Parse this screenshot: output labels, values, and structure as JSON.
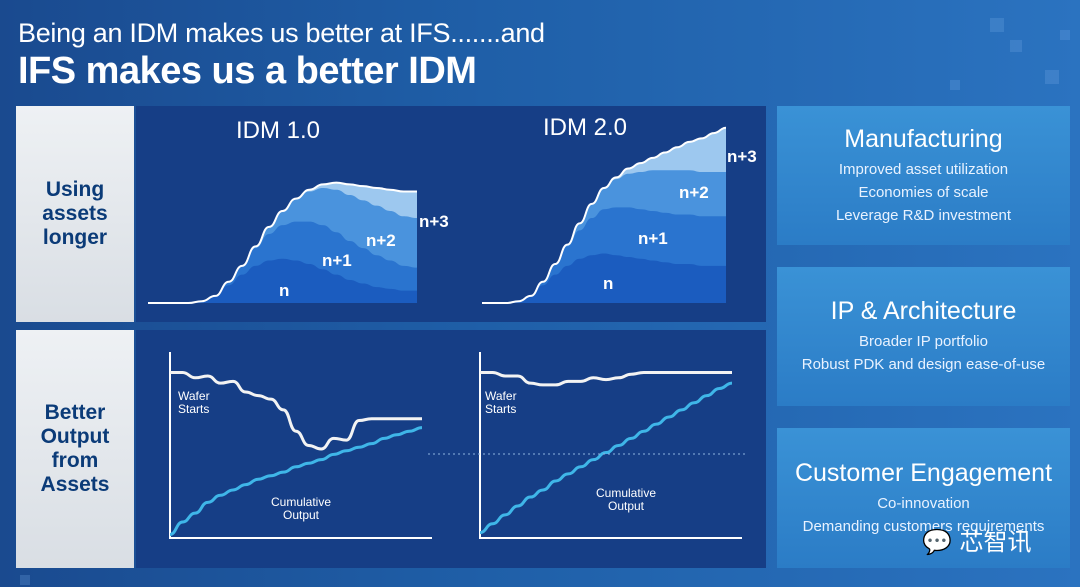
{
  "header": {
    "line1": "Being an IDM makes us better at IFS.......and",
    "line2": "IFS makes us a better IDM"
  },
  "rows": [
    {
      "label": "Using\nassets\nlonger"
    },
    {
      "label": "Better\nOutput\nfrom\nAssets"
    }
  ],
  "cards": [
    {
      "title": "Manufacturing",
      "items": [
        "Improved asset utilization",
        "Economies of scale",
        "Leverage R&D investment"
      ]
    },
    {
      "title": "IP & Architecture",
      "items": [
        "Broader IP portfolio",
        "Robust PDK and design ease-of-use"
      ]
    },
    {
      "title": "Customer Engagement",
      "items": [
        "Co-innovation",
        "Demanding customers requirements"
      ]
    }
  ],
  "watermark": "芯智讯",
  "colors": {
    "layer_n": "#1b5cbf",
    "layer_n1": "#2a74cf",
    "layer_n2": "#4a93dd",
    "layer_n3": "#9dc8ef",
    "cumulative": "#3fb6e8"
  },
  "chart_data": [
    {
      "type": "area",
      "title": "IDM 1.0",
      "stacked": true,
      "x": [
        0,
        1,
        2,
        3,
        4,
        5,
        6,
        7,
        8,
        9,
        10,
        11,
        12,
        13,
        14,
        15,
        16,
        17,
        18,
        19,
        20
      ],
      "ylim": [
        0,
        100
      ],
      "series": [
        {
          "name": "n",
          "values": [
            0,
            0,
            0,
            0,
            1,
            4,
            10,
            16,
            21,
            24,
            25,
            24,
            22,
            19,
            16,
            13,
            11,
            9,
            8,
            7,
            7
          ]
        },
        {
          "name": "n+1",
          "values": [
            0,
            0,
            0,
            0,
            0,
            0,
            2,
            5,
            10,
            15,
            19,
            22,
            24,
            25,
            24,
            22,
            20,
            18,
            16,
            14,
            13
          ]
        },
        {
          "name": "n+2",
          "values": [
            0,
            0,
            0,
            0,
            0,
            0,
            0,
            0,
            1,
            4,
            8,
            13,
            17,
            21,
            24,
            26,
            27,
            28,
            28,
            28,
            28
          ]
        },
        {
          "name": "n+3",
          "values": [
            0,
            0,
            0,
            0,
            0,
            0,
            0,
            0,
            0,
            0,
            0,
            0,
            1,
            2,
            4,
            6,
            8,
            10,
            12,
            14,
            15
          ]
        }
      ]
    },
    {
      "type": "area",
      "title": "IDM 2.0",
      "stacked": true,
      "x": [
        0,
        1,
        2,
        3,
        4,
        5,
        6,
        7,
        8,
        9,
        10,
        11,
        12,
        13,
        14,
        15,
        16,
        17,
        18,
        19,
        20
      ],
      "ylim": [
        0,
        100
      ],
      "series": [
        {
          "name": "n",
          "values": [
            0,
            0,
            0,
            1,
            4,
            10,
            16,
            21,
            25,
            27,
            28,
            27,
            26,
            25,
            24,
            23,
            22,
            22,
            21,
            21,
            21
          ]
        },
        {
          "name": "n+1",
          "values": [
            0,
            0,
            0,
            0,
            0,
            2,
            6,
            11,
            16,
            21,
            25,
            27,
            28,
            28,
            28,
            28,
            28,
            28,
            28,
            28,
            28
          ]
        },
        {
          "name": "n+2",
          "values": [
            0,
            0,
            0,
            0,
            0,
            0,
            0,
            1,
            4,
            8,
            12,
            16,
            19,
            21,
            23,
            24,
            25,
            25,
            25,
            25,
            25
          ]
        },
        {
          "name": "n+3",
          "values": [
            0,
            0,
            0,
            0,
            0,
            0,
            0,
            0,
            0,
            0,
            0,
            1,
            3,
            5,
            7,
            10,
            13,
            16,
            19,
            22,
            25
          ]
        }
      ]
    },
    {
      "type": "line",
      "title": "",
      "x": [
        0,
        1,
        2,
        3,
        4,
        5,
        6,
        7,
        8,
        9,
        10,
        11,
        12,
        13,
        14,
        15,
        16,
        17,
        18,
        19,
        20
      ],
      "ylim": [
        0,
        100
      ],
      "series": [
        {
          "name": "Wafer Starts",
          "values": [
            93,
            93,
            90,
            91,
            87,
            88,
            82,
            80,
            78,
            72,
            60,
            52,
            50,
            56,
            55,
            66,
            67,
            67,
            67,
            67,
            67
          ]
        },
        {
          "name": "Cumulative Output",
          "values": [
            2,
            9,
            14,
            20,
            24,
            27,
            30,
            33,
            35,
            37,
            40,
            42,
            44,
            47,
            49,
            51,
            53,
            56,
            58,
            60,
            62
          ]
        }
      ]
    },
    {
      "type": "line",
      "title": "",
      "x": [
        0,
        1,
        2,
        3,
        4,
        5,
        6,
        7,
        8,
        9,
        10,
        11,
        12,
        13,
        14,
        15,
        16,
        17,
        18,
        19,
        20
      ],
      "ylim": [
        0,
        100
      ],
      "series": [
        {
          "name": "Wafer Starts",
          "values": [
            93,
            93,
            91,
            91,
            87,
            86,
            86,
            88,
            88,
            90,
            89,
            90,
            92,
            93,
            93,
            93,
            93,
            93,
            93,
            93,
            93
          ]
        },
        {
          "name": "Cumulative Output",
          "values": [
            3,
            8,
            13,
            18,
            23,
            27,
            32,
            36,
            40,
            44,
            48,
            52,
            56,
            60,
            64,
            68,
            72,
            76,
            80,
            84,
            87
          ]
        }
      ]
    }
  ],
  "labels": {
    "wafer": "Wafer\nStarts",
    "cumulative": "Cumulative\nOutput"
  }
}
